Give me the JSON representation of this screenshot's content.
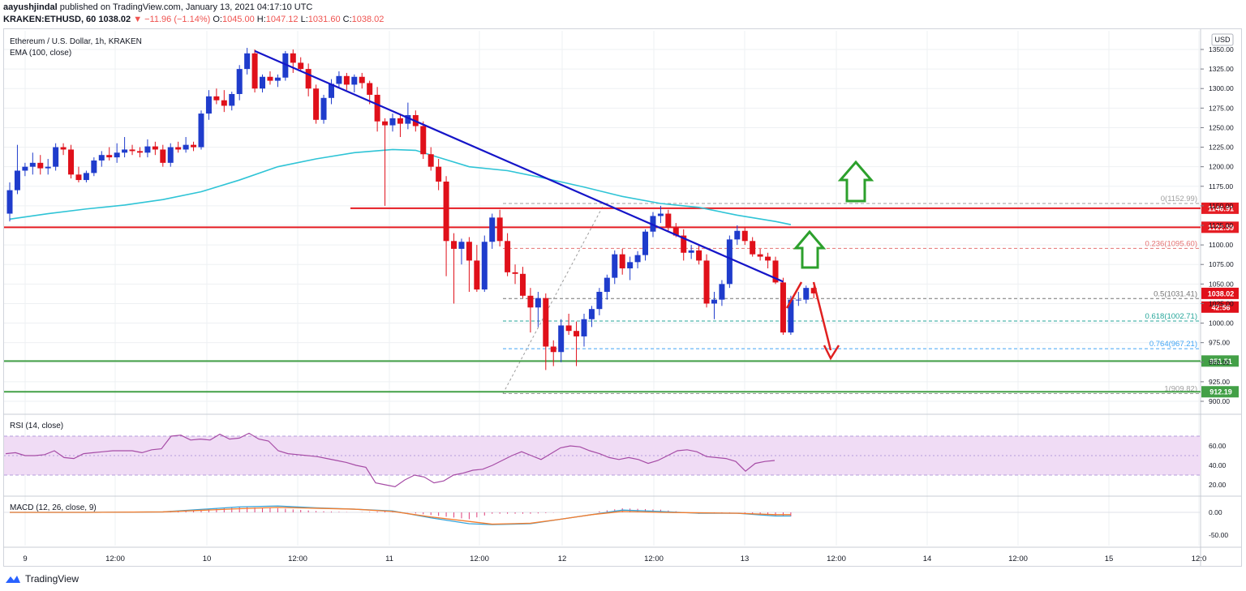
{
  "header": {
    "author": "aayushjindal",
    "published": "published on TradingView.com, January 13, 2021 04:17:10 UTC",
    "symbol": "KRAKEN:ETHUSD, 60",
    "last": "1038.02",
    "change": "▼ −11.96 (−1.14%)",
    "o_label": "O:",
    "o": "1045.00",
    "h_label": "H:",
    "h": "1047.12",
    "l_label": "L:",
    "l": "1031.60",
    "c_label": "C:",
    "c": "1038.02"
  },
  "pane_titles": {
    "main": "Ethereum / U.S. Dollar, 1h, KRAKEN",
    "ema": "EMA (100, close)",
    "rsi": "RSI (14, close)",
    "macd": "MACD (12, 26, close, 9)",
    "currency": "USD"
  },
  "footer": {
    "brand": "TradingView"
  },
  "colors": {
    "up": "#1f3ccc",
    "down": "#e0101a",
    "ema": "#2fc4d6",
    "trendline": "#1515c8",
    "resistance": "#e51c23",
    "support": "#43a047",
    "rsi": "#a64ca6",
    "rsi_band": "#f0dcf5",
    "macd": "#36a3d9",
    "signal": "#f57c2c",
    "hist": "#e0407a",
    "arrow_up": "#2ca02c",
    "arrow_down": "#e02020",
    "fib": "#9e9e9e"
  },
  "chart_data": [
    {
      "type": "candlestick",
      "pair": "ETH/USD",
      "interval": "1h",
      "x_ticks": [
        "9",
        "12:00",
        "10",
        "12:00",
        "11",
        "12:00",
        "12",
        "12:00",
        "13",
        "12:00",
        "14",
        "12:00",
        "15",
        "12:0"
      ],
      "y_ticks": [
        "1350.00",
        "1325.00",
        "1300.00",
        "1275.00",
        "1250.00",
        "1225.00",
        "1200.00",
        "1175.00",
        "1150.00",
        "1125.00",
        "1100.00",
        "1075.00",
        "1050.00",
        "1025.00",
        "1000.00",
        "975.00",
        "950.00",
        "925.00",
        "900.00"
      ],
      "ylim": [
        892,
        1368
      ],
      "candles": [
        [
          1140,
          1180,
          1130,
          1170
        ],
        [
          1170,
          1228,
          1165,
          1195
        ],
        [
          1195,
          1205,
          1188,
          1200
        ],
        [
          1200,
          1218,
          1190,
          1205
        ],
        [
          1205,
          1215,
          1190,
          1198
        ],
        [
          1198,
          1210,
          1190,
          1200
        ],
        [
          1200,
          1230,
          1195,
          1225
        ],
        [
          1225,
          1230,
          1215,
          1222
        ],
        [
          1222,
          1228,
          1185,
          1190
        ],
        [
          1190,
          1200,
          1180,
          1183
        ],
        [
          1183,
          1195,
          1180,
          1192
        ],
        [
          1192,
          1212,
          1188,
          1208
        ],
        [
          1208,
          1220,
          1200,
          1215
        ],
        [
          1215,
          1225,
          1208,
          1212
        ],
        [
          1212,
          1230,
          1205,
          1218
        ],
        [
          1218,
          1238,
          1212,
          1222
        ],
        [
          1222,
          1228,
          1215,
          1220
        ],
        [
          1220,
          1225,
          1212,
          1218
        ],
        [
          1218,
          1235,
          1212,
          1226
        ],
        [
          1226,
          1232,
          1215,
          1222
        ],
        [
          1222,
          1228,
          1200,
          1205
        ],
        [
          1205,
          1230,
          1200,
          1225
        ],
        [
          1225,
          1232,
          1218,
          1222
        ],
        [
          1222,
          1238,
          1218,
          1228
        ],
        [
          1228,
          1232,
          1220,
          1225
        ],
        [
          1225,
          1272,
          1222,
          1268
        ],
        [
          1268,
          1298,
          1260,
          1290
        ],
        [
          1290,
          1300,
          1280,
          1285
        ],
        [
          1285,
          1298,
          1270,
          1278
        ],
        [
          1278,
          1296,
          1272,
          1293
        ],
        [
          1293,
          1330,
          1285,
          1325
        ],
        [
          1325,
          1352,
          1318,
          1345
        ],
        [
          1345,
          1350,
          1295,
          1300
        ],
        [
          1300,
          1318,
          1295,
          1315
        ],
        [
          1315,
          1322,
          1305,
          1310
        ],
        [
          1310,
          1318,
          1302,
          1314
        ],
        [
          1314,
          1348,
          1310,
          1345
        ],
        [
          1345,
          1350,
          1320,
          1333
        ],
        [
          1333,
          1340,
          1322,
          1325
        ],
        [
          1325,
          1332,
          1290,
          1300
        ],
        [
          1300,
          1305,
          1255,
          1260
        ],
        [
          1260,
          1292,
          1255,
          1288
        ],
        [
          1288,
          1312,
          1280,
          1306
        ],
        [
          1306,
          1322,
          1300,
          1316
        ],
        [
          1316,
          1320,
          1298,
          1305
        ],
        [
          1305,
          1318,
          1295,
          1315
        ],
        [
          1315,
          1320,
          1300,
          1307
        ],
        [
          1307,
          1310,
          1280,
          1292
        ],
        [
          1292,
          1302,
          1245,
          1258
        ],
        [
          1258,
          1262,
          1150,
          1253
        ],
        [
          1253,
          1268,
          1245,
          1262
        ],
        [
          1262,
          1268,
          1238,
          1255
        ],
        [
          1255,
          1282,
          1248,
          1266
        ],
        [
          1266,
          1272,
          1245,
          1252
        ],
        [
          1252,
          1258,
          1210,
          1216
        ],
        [
          1216,
          1225,
          1195,
          1200
        ],
        [
          1200,
          1210,
          1170,
          1181
        ],
        [
          1181,
          1188,
          1060,
          1105
        ],
        [
          1105,
          1115,
          1025,
          1095
        ],
        [
          1095,
          1108,
          1075,
          1104
        ],
        [
          1104,
          1110,
          1040,
          1080
        ],
        [
          1080,
          1100,
          1040,
          1043
        ],
        [
          1043,
          1112,
          1040,
          1104
        ],
        [
          1104,
          1140,
          1095,
          1135
        ],
        [
          1135,
          1145,
          1098,
          1105
        ],
        [
          1105,
          1115,
          1060,
          1065
        ],
        [
          1065,
          1075,
          1050,
          1063
        ],
        [
          1063,
          1072,
          1032,
          1035
        ],
        [
          1035,
          1045,
          988,
          1020
        ],
        [
          1020,
          1040,
          995,
          1032
        ],
        [
          1032,
          1038,
          940,
          970
        ],
        [
          970,
          978,
          945,
          963
        ],
        [
          963,
          1005,
          950,
          997
        ],
        [
          997,
          1012,
          985,
          990
        ],
        [
          990,
          1002,
          945,
          983
        ],
        [
          983,
          1012,
          970,
          1005
        ],
        [
          1005,
          1022,
          995,
          1018
        ],
        [
          1018,
          1045,
          1010,
          1040
        ],
        [
          1040,
          1062,
          1030,
          1058
        ],
        [
          1058,
          1093,
          1050,
          1088
        ],
        [
          1088,
          1095,
          1062,
          1070
        ],
        [
          1070,
          1085,
          1055,
          1078
        ],
        [
          1078,
          1092,
          1070,
          1087
        ],
        [
          1087,
          1120,
          1080,
          1117
        ],
        [
          1117,
          1142,
          1110,
          1137
        ],
        [
          1137,
          1150,
          1128,
          1140
        ],
        [
          1140,
          1145,
          1118,
          1122
        ],
        [
          1122,
          1128,
          1110,
          1112
        ],
        [
          1112,
          1120,
          1080,
          1090
        ],
        [
          1090,
          1100,
          1082,
          1093
        ],
        [
          1093,
          1100,
          1075,
          1080
        ],
        [
          1080,
          1088,
          1020,
          1025
        ],
        [
          1025,
          1040,
          1005,
          1030
        ],
        [
          1030,
          1055,
          1022,
          1050
        ],
        [
          1050,
          1112,
          1045,
          1107
        ],
        [
          1107,
          1125,
          1100,
          1118
        ],
        [
          1118,
          1122,
          1100,
          1105
        ],
        [
          1105,
          1110,
          1085,
          1088
        ],
        [
          1088,
          1095,
          1080,
          1085
        ],
        [
          1085,
          1090,
          1070,
          1080
        ],
        [
          1080,
          1085,
          1050,
          1052
        ],
        [
          1052,
          1058,
          985,
          988
        ],
        [
          988,
          1035,
          985,
          1030
        ],
        [
          1030,
          1040,
          1022,
          1030
        ],
        [
          1030,
          1048,
          1025,
          1045
        ],
        [
          1045,
          1047.12,
          1031.6,
          1038.02
        ]
      ],
      "ema_100": [
        [
          0,
          1133
        ],
        [
          5,
          1140
        ],
        [
          10,
          1146
        ],
        [
          15,
          1151
        ],
        [
          20,
          1158
        ],
        [
          25,
          1168
        ],
        [
          30,
          1183
        ],
        [
          35,
          1200
        ],
        [
          40,
          1210
        ],
        [
          45,
          1218
        ],
        [
          50,
          1222
        ],
        [
          53,
          1221
        ],
        [
          56,
          1212
        ],
        [
          60,
          1200
        ],
        [
          65,
          1195
        ],
        [
          70,
          1185
        ],
        [
          75,
          1174
        ],
        [
          80,
          1162
        ],
        [
          85,
          1153
        ],
        [
          90,
          1148
        ],
        [
          95,
          1138
        ],
        [
          100,
          1130
        ],
        [
          102,
          1126
        ]
      ],
      "trendline": {
        "label": "",
        "points": [
          [
            32,
            1348
          ],
          [
            101,
            1053
          ]
        ]
      },
      "horizontal_levels": [
        {
          "name": "resistance_1",
          "value": 1146.91,
          "label": "1146.91",
          "color": "#e51c23"
        },
        {
          "name": "resistance_2",
          "value": 1122.59,
          "label": "1122.59",
          "color": "#e51c23"
        },
        {
          "name": "support_1",
          "value": 951.51,
          "label": "951.51",
          "color": "#43a047"
        },
        {
          "name": "support_2",
          "value": 912.19,
          "label": "912.19",
          "color": "#43a047"
        }
      ],
      "fibonacci": [
        {
          "label": "0(1152.99)",
          "value": 1152.99,
          "color": "#9e9e9e"
        },
        {
          "label": "0.236(1095.60)",
          "value": 1095.6,
          "color": "#e57373"
        },
        {
          "label": "0.5(1031.41)",
          "value": 1031.41,
          "color": "#757575"
        },
        {
          "label": "0.618(1002.71)",
          "value": 1002.71,
          "color": "#26a69a"
        },
        {
          "label": "0.764(967.21)",
          "value": 967.21,
          "color": "#42a5f5"
        },
        {
          "label": "1(909.82)",
          "value": 909.82,
          "color": "#9e9e9e"
        }
      ],
      "price_labels": [
        {
          "value": 1038.02,
          "text": "1038.02",
          "color": "#e0101a"
        },
        {
          "value": 1020.5,
          "text": "42:56",
          "color": "#e0101a"
        }
      ]
    },
    {
      "type": "line",
      "name": "RSI (14, close)",
      "y_ticks": [
        "60.00",
        "40.00",
        "20.00"
      ],
      "ylim": [
        15,
        80
      ],
      "band": [
        30,
        70
      ],
      "values": [
        52,
        53,
        50,
        50,
        51,
        55,
        48,
        47,
        52,
        53,
        54,
        55,
        55,
        55,
        53,
        56,
        57,
        70,
        71,
        66,
        67,
        66,
        72,
        67,
        68,
        73,
        67,
        65,
        55,
        52,
        51,
        50,
        49,
        47,
        45,
        43,
        40,
        38,
        22,
        20,
        18,
        25,
        30,
        28,
        22,
        24,
        30,
        32,
        35,
        36,
        40,
        45,
        50,
        54,
        50,
        46,
        52,
        58,
        60,
        59,
        55,
        52,
        48,
        46,
        48,
        46,
        42,
        45,
        50,
        55,
        56,
        54,
        49,
        48,
        47,
        44,
        34,
        42,
        44,
        45
      ]
    },
    {
      "type": "line",
      "name": "MACD (12, 26, close, 9)",
      "y_ticks": [
        "0.00",
        "-50.00"
      ],
      "ylim": [
        -68,
        25
      ],
      "macd": [
        [
          0,
          0
        ],
        [
          10,
          0
        ],
        [
          20,
          1
        ],
        [
          30,
          12
        ],
        [
          35,
          14
        ],
        [
          40,
          10
        ],
        [
          45,
          7
        ],
        [
          50,
          3
        ],
        [
          55,
          -12
        ],
        [
          60,
          -25
        ],
        [
          63,
          -27
        ],
        [
          68,
          -25
        ],
        [
          72,
          -15
        ],
        [
          76,
          -5
        ],
        [
          80,
          5
        ],
        [
          85,
          2
        ],
        [
          90,
          -2
        ],
        [
          95,
          -2
        ],
        [
          100,
          -8
        ],
        [
          102,
          -8
        ]
      ],
      "signal": [
        [
          0,
          0
        ],
        [
          10,
          0
        ],
        [
          20,
          1
        ],
        [
          30,
          8
        ],
        [
          35,
          11
        ],
        [
          40,
          9
        ],
        [
          45,
          7
        ],
        [
          50,
          2
        ],
        [
          55,
          -10
        ],
        [
          60,
          -20
        ],
        [
          63,
          -26
        ],
        [
          68,
          -24
        ],
        [
          72,
          -15
        ],
        [
          76,
          -5
        ],
        [
          80,
          2
        ],
        [
          85,
          0
        ],
        [
          90,
          -1
        ],
        [
          95,
          -2
        ],
        [
          100,
          -5
        ],
        [
          102,
          -5
        ]
      ]
    }
  ]
}
